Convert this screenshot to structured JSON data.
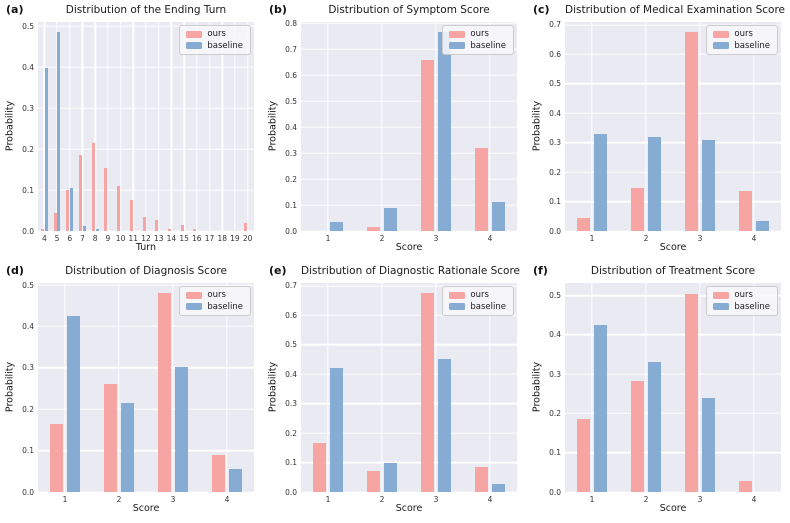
{
  "figure": {
    "description": "2x3 grid of grouped bar charts comparing ours vs baseline"
  },
  "colors": {
    "ours": "#f6a5a3",
    "baseline": "#87acd4",
    "plot_background": "#eaeaf2",
    "gridline": "#ffffff",
    "text": "#1a1a1a"
  },
  "legend": {
    "position": "upper right",
    "labels": [
      "ours",
      "baseline"
    ]
  },
  "chart_data": [
    {
      "type": "bar",
      "panel_label": "(a)",
      "title": "Distribution of the Ending Turn",
      "xlabel": "Turn",
      "ylabel": "Probability",
      "categories": [
        "4",
        "5",
        "6",
        "7",
        "8",
        "9",
        "10",
        "11",
        "12",
        "13",
        "14",
        "15",
        "16",
        "17",
        "18",
        "19",
        "20"
      ],
      "series": [
        {
          "name": "ours",
          "color": "#f6a5a3",
          "values": [
            0.005,
            0.043,
            0.1,
            0.185,
            0.215,
            0.153,
            0.11,
            0.076,
            0.033,
            0.027,
            0.006,
            0.014,
            0.005,
            0,
            0,
            0,
            0.02
          ]
        },
        {
          "name": "baseline",
          "color": "#87acd4",
          "values": [
            0.397,
            0.485,
            0.105,
            0.012,
            0.004,
            0,
            0,
            0,
            0,
            0,
            0,
            0,
            0,
            0,
            0,
            0,
            0
          ]
        }
      ],
      "yticks": [
        0.0,
        0.1,
        0.2,
        0.3,
        0.4,
        0.5
      ],
      "ylim": [
        0,
        0.51
      ],
      "grid": true,
      "legend_position": "upper right"
    },
    {
      "type": "bar",
      "panel_label": "(b)",
      "title": "Distribution of Symptom Score",
      "xlabel": "Score",
      "ylabel": "Probability",
      "categories": [
        "1",
        "2",
        "3",
        "4"
      ],
      "series": [
        {
          "name": "ours",
          "color": "#f6a5a3",
          "values": [
            0,
            0.015,
            0.66,
            0.32
          ]
        },
        {
          "name": "baseline",
          "color": "#87acd4",
          "values": [
            0.035,
            0.09,
            0.765,
            0.11
          ]
        }
      ],
      "yticks": [
        0.0,
        0.1,
        0.2,
        0.3,
        0.4,
        0.5,
        0.6,
        0.7,
        0.8
      ],
      "ylim": [
        0,
        0.805
      ],
      "grid": true,
      "legend_position": "upper right"
    },
    {
      "type": "bar",
      "panel_label": "(c)",
      "title": "Distribution of Medical Examination Score",
      "xlabel": "Score",
      "ylabel": "Probability",
      "categories": [
        "1",
        "2",
        "3",
        "4"
      ],
      "series": [
        {
          "name": "ours",
          "color": "#f6a5a3",
          "values": [
            0.045,
            0.145,
            0.675,
            0.135
          ]
        },
        {
          "name": "baseline",
          "color": "#87acd4",
          "values": [
            0.33,
            0.32,
            0.31,
            0.035
          ]
        }
      ],
      "yticks": [
        0.0,
        0.1,
        0.2,
        0.3,
        0.4,
        0.5,
        0.6,
        0.7
      ],
      "ylim": [
        0,
        0.71
      ],
      "grid": true,
      "legend_position": "upper right"
    },
    {
      "type": "bar",
      "panel_label": "(d)",
      "title": "Distribution of Diagnosis Score",
      "xlabel": "Score",
      "ylabel": "Probability",
      "categories": [
        "1",
        "2",
        "3",
        "4"
      ],
      "series": [
        {
          "name": "ours",
          "color": "#f6a5a3",
          "values": [
            0.165,
            0.26,
            0.48,
            0.09
          ]
        },
        {
          "name": "baseline",
          "color": "#87acd4",
          "values": [
            0.425,
            0.215,
            0.302,
            0.055
          ]
        }
      ],
      "yticks": [
        0.0,
        0.1,
        0.2,
        0.3,
        0.4,
        0.5
      ],
      "ylim": [
        0,
        0.505
      ],
      "grid": true,
      "legend_position": "upper right"
    },
    {
      "type": "bar",
      "panel_label": "(e)",
      "title": "Distribution of Diagnostic Rationale Score",
      "xlabel": "Score",
      "ylabel": "Probability",
      "categories": [
        "1",
        "2",
        "3",
        "4"
      ],
      "series": [
        {
          "name": "ours",
          "color": "#f6a5a3",
          "values": [
            0.165,
            0.07,
            0.675,
            0.085
          ]
        },
        {
          "name": "baseline",
          "color": "#87acd4",
          "values": [
            0.42,
            0.098,
            0.452,
            0.028
          ]
        }
      ],
      "yticks": [
        0.0,
        0.1,
        0.2,
        0.3,
        0.4,
        0.5,
        0.6,
        0.7
      ],
      "ylim": [
        0,
        0.71
      ],
      "grid": true,
      "legend_position": "upper right"
    },
    {
      "type": "bar",
      "panel_label": "(f)",
      "title": "Distribution of Treatment Score",
      "xlabel": "Score",
      "ylabel": "Probability",
      "categories": [
        "1",
        "2",
        "3",
        "4"
      ],
      "series": [
        {
          "name": "ours",
          "color": "#f6a5a3",
          "values": [
            0.185,
            0.282,
            0.505,
            0.028
          ]
        },
        {
          "name": "baseline",
          "color": "#87acd4",
          "values": [
            0.425,
            0.33,
            0.24,
            0
          ]
        }
      ],
      "yticks": [
        0.0,
        0.1,
        0.2,
        0.3,
        0.4,
        0.5
      ],
      "ylim": [
        0,
        0.532
      ],
      "grid": true,
      "legend_position": "upper right"
    }
  ]
}
